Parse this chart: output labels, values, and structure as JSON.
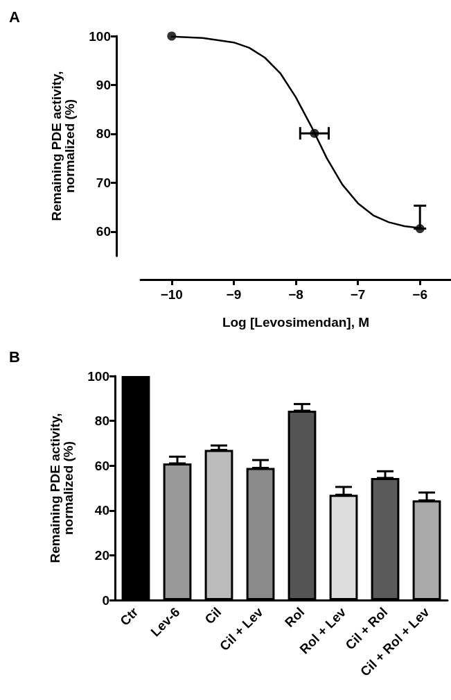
{
  "chart_data": [
    {
      "type": "scatter",
      "title": "A",
      "xlabel": "Log [Levosimendan], M",
      "ylabel": "Remaining PDE activity,\nnormalized (%)",
      "xlim": [
        -10.5,
        -5.5
      ],
      "xticks": [
        -10,
        -9,
        -8,
        -7,
        -6
      ],
      "ylim": [
        55,
        100
      ],
      "yticks": [
        60,
        70,
        80,
        90,
        100
      ],
      "marker": "circle",
      "series": [
        {
          "type": "scatter",
          "color": "#000000",
          "x": [
            -10,
            -7.7,
            -6
          ],
          "values": [
            100,
            80.1,
            60.6
          ],
          "errors": [
            null,
            null,
            [
              60.6,
              65.3
            ]
          ],
          "xerrors": [
            null,
            0.23,
            null
          ]
        },
        {
          "type": "line",
          "color": "#000000",
          "marker": "none",
          "x": [
            -10,
            -9.5,
            -9,
            -8.75,
            -8.5,
            -8.25,
            -8,
            -7.75,
            -7.5,
            -7.25,
            -7,
            -6.75,
            -6.5,
            -6.25,
            -6
          ],
          "values": [
            99.9,
            99.6,
            98.7,
            97.6,
            95.6,
            92.4,
            87.5,
            81.5,
            75,
            69.6,
            65.8,
            63.3,
            61.9,
            61.1,
            60.7
          ]
        }
      ]
    },
    {
      "type": "bar",
      "title": "B",
      "ylabel": "Remaining PDE activity,\nnormalized (%)",
      "categories": [
        "Ctr",
        "Lev-6",
        "Cil",
        "Cil + Lev",
        "Rol",
        "Rol + Lev",
        "Cil + Rol",
        "Cil + Rol + Lev"
      ],
      "values": [
        100,
        61,
        67,
        59,
        84.5,
        47,
        54.5,
        44.5
      ],
      "colors": [
        "#000000",
        "#999999",
        "#bbbbbb",
        "#8a8a8a",
        "#555555",
        "#dddddd",
        "#5a5a5a",
        "#aaaaaa"
      ],
      "errors": [
        null,
        [
          61,
          64
        ],
        [
          67,
          69
        ],
        [
          59,
          62.5
        ],
        [
          84.5,
          87.5
        ],
        [
          47,
          50.5
        ],
        [
          54.5,
          57.5
        ],
        [
          44.5,
          48
        ]
      ],
      "ylim": [
        0,
        100
      ],
      "yticks": [
        0,
        20,
        40,
        60,
        80,
        100
      ]
    }
  ]
}
